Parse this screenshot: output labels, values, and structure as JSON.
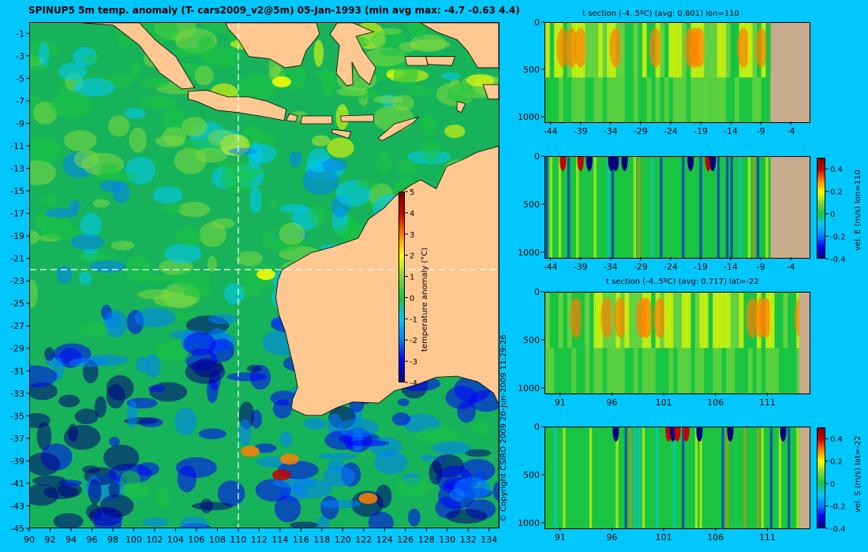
{
  "title": "SPINUP5 5m temp. anomaly (T- cars2009_v2@5m) 05-Jan-1993 (min avg max: -4.7 -0.63 4.4)",
  "copyright": "© Copyright CSIRO 2009   20-Jun-2009 11:29:26",
  "colors": {
    "background": "#00c8ff",
    "land": "#ffc890",
    "seabed": "#c8aa8c",
    "colormap": [
      "#00007f",
      "#0000ff",
      "#0080ff",
      "#00c8ff",
      "#19c441",
      "#80d840",
      "#ffff00",
      "#ff8000",
      "#c80000",
      "#7f0000"
    ]
  },
  "chart_data": [
    {
      "type": "heatmap",
      "name": "surface-temperature-anomaly-map",
      "title": "SPINUP5 5m temp. anomaly (T- cars2009_v2@5m) 05-Jan-1993 (min avg max: -4.7 -0.63 4.4)",
      "xlim": [
        90,
        135
      ],
      "ylim": [
        -45,
        0
      ],
      "x_ticks": [
        90,
        92,
        94,
        96,
        98,
        100,
        102,
        104,
        106,
        108,
        110,
        112,
        114,
        116,
        118,
        120,
        122,
        124,
        126,
        128,
        130,
        132,
        134
      ],
      "y_ticks": [
        -1,
        -3,
        -5,
        -7,
        -9,
        -11,
        -13,
        -15,
        -17,
        -19,
        -21,
        -23,
        -25,
        -27,
        -29,
        -31,
        -33,
        -35,
        -37,
        -39,
        -41,
        -43,
        -45
      ],
      "section_lines": {
        "lon": 110,
        "lat": -22
      },
      "colorbar": {
        "label": "temperature anomaly (°C)",
        "range": [
          -4,
          5
        ],
        "ticks": [
          5,
          4,
          3,
          2,
          1,
          0,
          -1,
          -2,
          -3,
          -4
        ]
      }
    },
    {
      "type": "heatmap",
      "name": "t-section-lon110",
      "title": "t section (-4..5ºC) (avg: 0.801) lon=110",
      "x_ticks": [
        -44,
        -39,
        -34,
        -29,
        -24,
        -19,
        -14,
        -9,
        -4
      ],
      "xlim": [
        -45,
        -1
      ],
      "y_ticks": [
        0,
        500,
        1000
      ],
      "ylim": [
        0,
        1050
      ]
    },
    {
      "type": "heatmap",
      "name": "vel-e-section-lon110",
      "x_ticks": [
        -44,
        -39,
        -34,
        -29,
        -24,
        -19,
        -14,
        -9,
        -4
      ],
      "xlim": [
        -45,
        -1
      ],
      "y_ticks": [
        0,
        500,
        1000
      ],
      "ylim": [
        0,
        1050
      ],
      "colorbar": {
        "label": "vel. E (m/s) lon=110",
        "range": [
          -0.4,
          0.5
        ],
        "ticks": [
          "0.4",
          "0.2",
          "0",
          "-0.2",
          "-0.4"
        ]
      }
    },
    {
      "type": "heatmap",
      "name": "t-section-lat-22",
      "title": "t section (-4..5ºC) (avg: 0.717) lat=-22",
      "x_ticks": [
        91,
        96,
        101,
        106,
        111
      ],
      "xlim": [
        89.5,
        115
      ],
      "y_ticks": [
        0,
        500,
        1000
      ],
      "ylim": [
        0,
        1050
      ]
    },
    {
      "type": "heatmap",
      "name": "vel-s-section-lat-22",
      "x_ticks": [
        91,
        96,
        101,
        106,
        111
      ],
      "xlim": [
        89.5,
        115
      ],
      "y_ticks": [
        0,
        500,
        1000
      ],
      "ylim": [
        0,
        1050
      ],
      "colorbar": {
        "label": "vel. S (m/s) lat=-22",
        "range": [
          -0.4,
          0.5
        ],
        "ticks": [
          "0.4",
          "0.2",
          "0",
          "-0.2",
          "-0.4"
        ]
      }
    }
  ]
}
